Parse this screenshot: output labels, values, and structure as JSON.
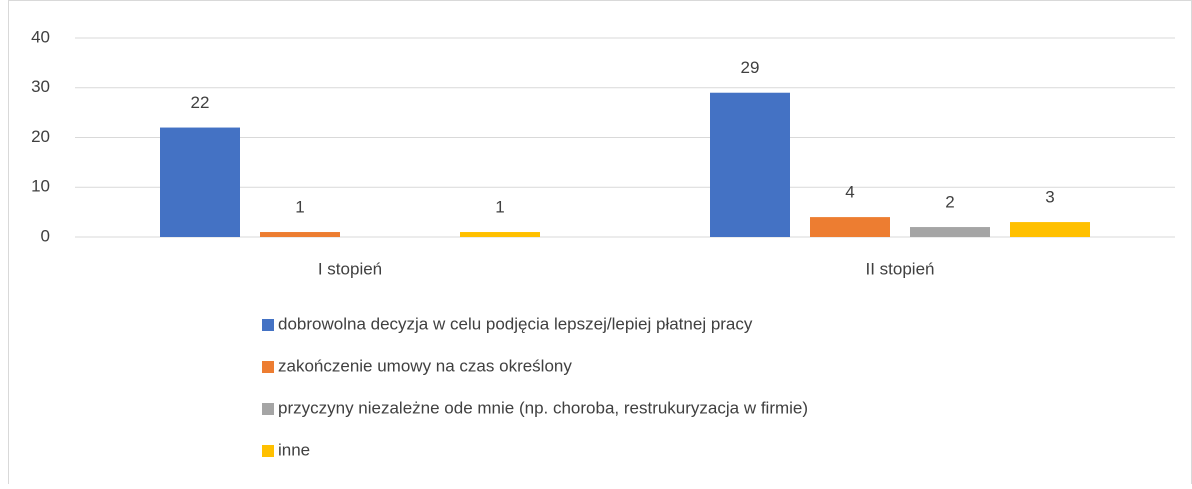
{
  "chart_data": {
    "type": "bar",
    "categories": [
      "I stopień",
      "II stopień"
    ],
    "series": [
      {
        "name": "dobrowolna decyzja w celu podjęcia lepszej/lepiej płatnej pracy",
        "color": "#4472c4",
        "values": [
          22,
          29
        ]
      },
      {
        "name": "zakończenie umowy na czas określony",
        "color": "#ed7d31",
        "values": [
          1,
          4
        ]
      },
      {
        "name": "przyczyny niezależne ode mnie (np. choroba, restrukuryzacja w firmie)",
        "color": "#a5a5a5",
        "values": [
          null,
          2
        ]
      },
      {
        "name": "inne",
        "color": "#ffc000",
        "values": [
          1,
          3
        ]
      }
    ],
    "ylim": [
      0,
      40
    ],
    "yticks": [
      0,
      10,
      20,
      30,
      40
    ],
    "grid": true,
    "legend": "bottom"
  }
}
